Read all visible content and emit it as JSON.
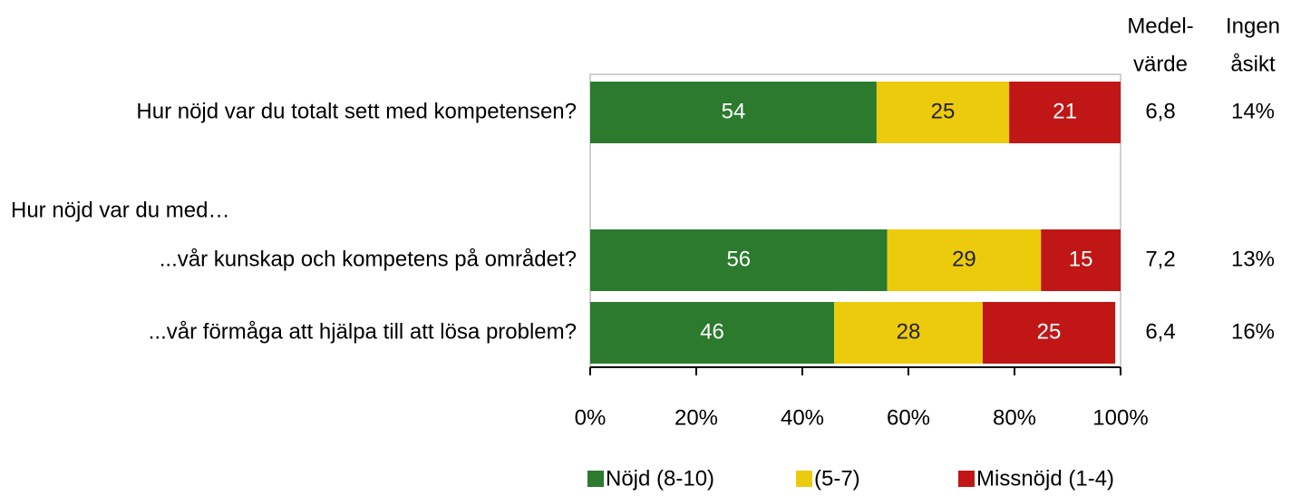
{
  "chart_data": {
    "type": "bar",
    "orientation": "horizontal",
    "stacked": true,
    "categories": [
      "Hur nöjd var du totalt sett med kompetensen?",
      "Hur nöjd var du med…",
      "...vår kunskap och kompetens på området?",
      "...vår förmåga att hjälpa till att lösa problem?"
    ],
    "series": [
      {
        "name": "Nöjd (8-10)",
        "color": "#2b7a2e",
        "values": [
          54,
          null,
          56,
          46
        ]
      },
      {
        "name": "(5-7)",
        "color": "#eccb0c",
        "values": [
          25,
          null,
          29,
          28
        ]
      },
      {
        "name": "Missnöjd (1-4)",
        "color": "#c01616",
        "values": [
          21,
          null,
          15,
          25
        ]
      }
    ],
    "xlim": [
      0,
      100
    ],
    "xticks": [
      {
        "value": 0,
        "label": "0%"
      },
      {
        "value": 20,
        "label": "20%"
      },
      {
        "value": 40,
        "label": "40%"
      },
      {
        "value": 60,
        "label": "60%"
      },
      {
        "value": 80,
        "label": "80%"
      },
      {
        "value": 100,
        "label": "100%"
      }
    ],
    "legend": "bottom",
    "columns": [
      {
        "header": [
          "Medel-",
          "värde"
        ],
        "values": [
          6.8,
          null,
          7.2,
          6.4
        ],
        "value_labels": [
          "6,8",
          null,
          "7,2",
          "6,4"
        ]
      },
      {
        "header": [
          "Ingen",
          "åsikt"
        ],
        "values": [
          14,
          null,
          13,
          16
        ],
        "value_labels": [
          "14%",
          null,
          "13%",
          "16%"
        ]
      }
    ]
  }
}
